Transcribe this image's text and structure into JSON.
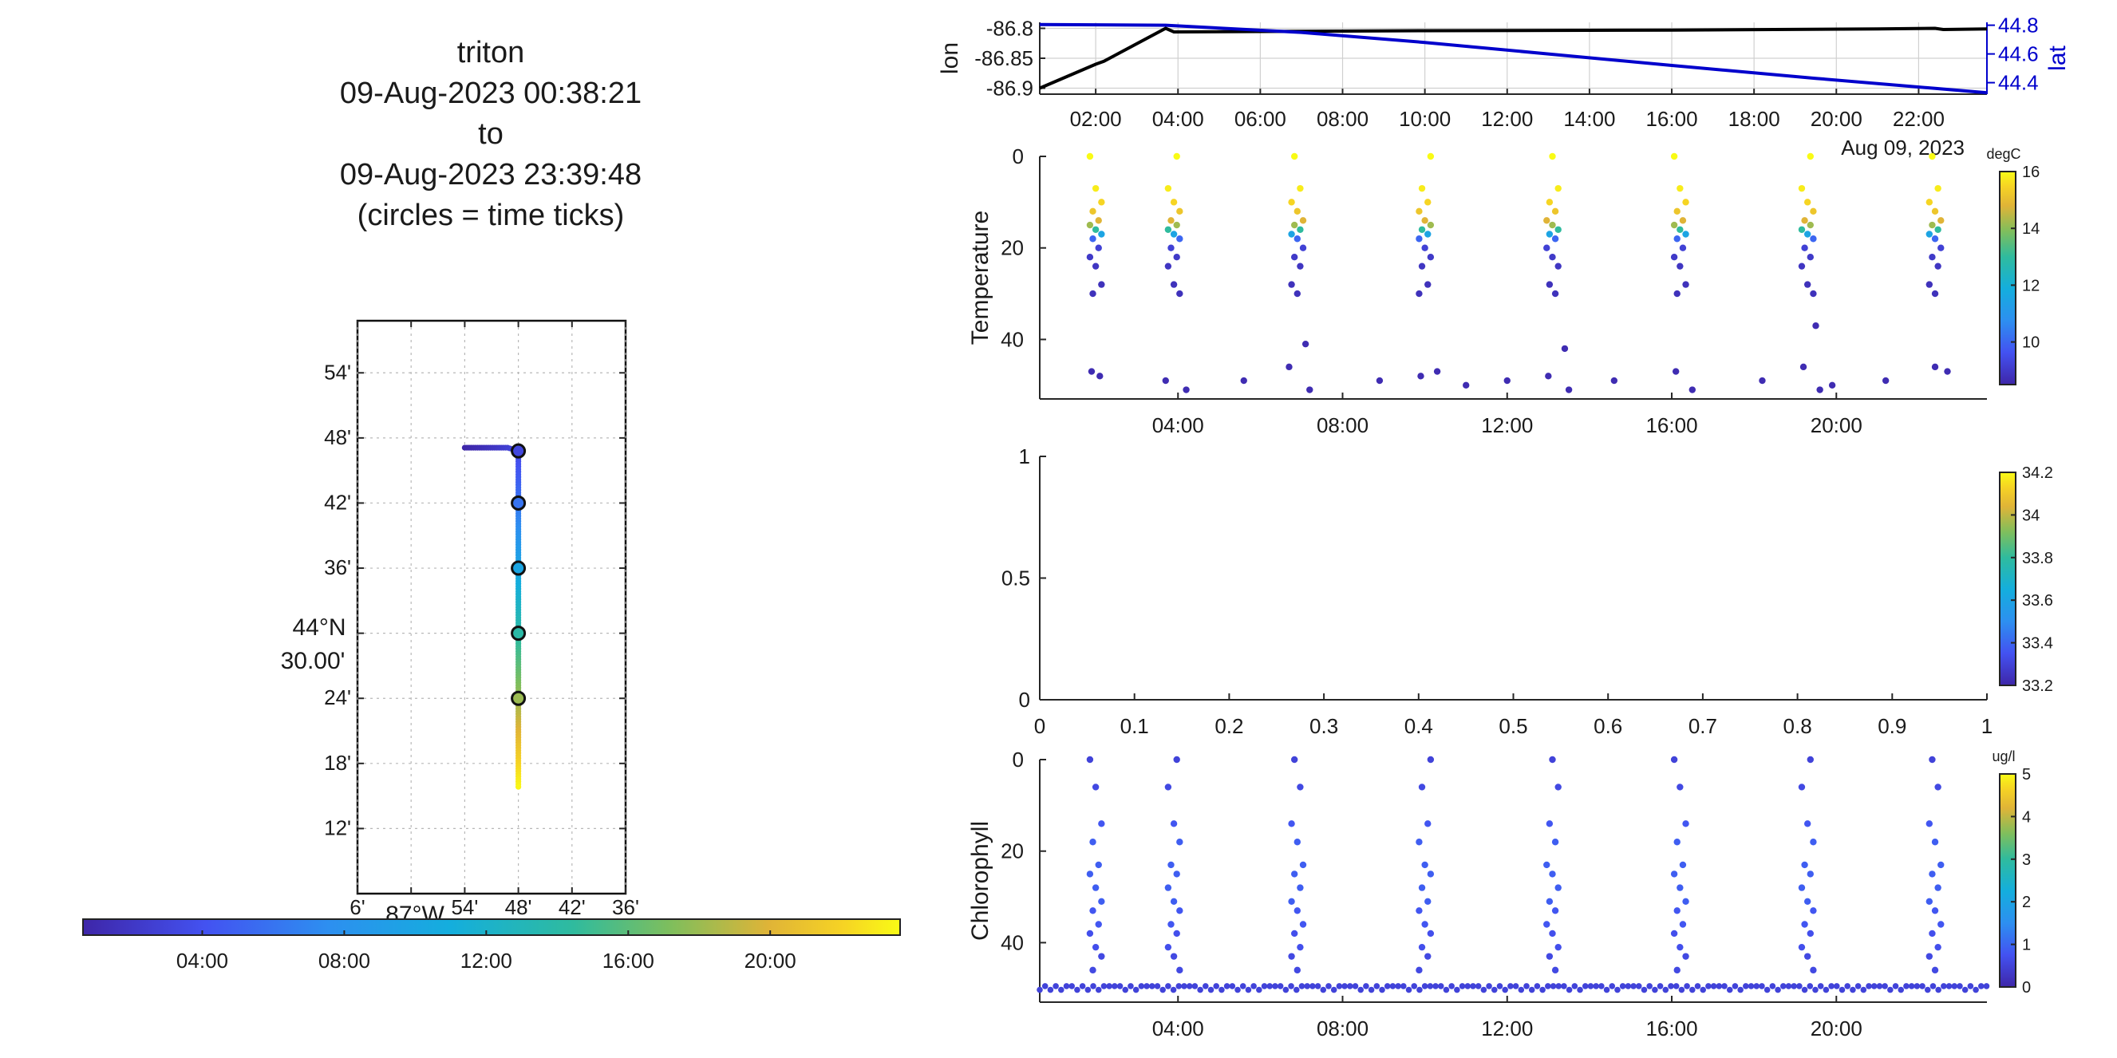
{
  "title": {
    "lines": [
      "triton",
      "09-Aug-2023 00:38:21",
      "to",
      "09-Aug-2023 23:39:48",
      "(circles = time ticks)"
    ]
  },
  "map": {
    "lat_ticks": [
      {
        "v": 44.9,
        "label": "54'"
      },
      {
        "v": 44.8,
        "label": "48'"
      },
      {
        "v": 44.7,
        "label": "42'"
      },
      {
        "v": 44.6,
        "label": "36'"
      },
      {
        "v": 44.4,
        "label": "24'"
      },
      {
        "v": 44.3,
        "label": "18'"
      },
      {
        "v": 44.2,
        "label": "12'"
      }
    ],
    "lat_major": {
      "v": 44.5,
      "line1": "44°N",
      "line2": "30.00'"
    },
    "lon_ticks": [
      {
        "v": -87.1,
        "label": "6'"
      },
      {
        "v": -86.9,
        "label": "54'"
      },
      {
        "v": -86.8,
        "label": "48'"
      },
      {
        "v": -86.7,
        "label": "42'"
      },
      {
        "v": -86.6,
        "label": "36'"
      }
    ],
    "lon_major": {
      "v": -87.0,
      "label": "87°W"
    },
    "xlim": [
      -87.1,
      -86.6
    ],
    "ylim": [
      44.1,
      44.98
    ],
    "track": [
      {
        "lon": -86.9,
        "lat": 44.785,
        "t": 0.64
      },
      {
        "lon": -86.88,
        "lat": 44.785,
        "t": 1.0
      },
      {
        "lon": -86.86,
        "lat": 44.785,
        "t": 1.5
      },
      {
        "lon": -86.84,
        "lat": 44.785,
        "t": 2.0
      },
      {
        "lon": -86.82,
        "lat": 44.785,
        "t": 2.6
      },
      {
        "lon": -86.8,
        "lat": 44.78,
        "t": 3.2
      },
      {
        "lon": -86.8,
        "lat": 44.76,
        "t": 4.0
      },
      {
        "lon": -86.8,
        "lat": 44.74,
        "t": 4.6
      },
      {
        "lon": -86.8,
        "lat": 44.72,
        "t": 5.3
      },
      {
        "lon": -86.8,
        "lat": 44.7,
        "t": 6.0
      },
      {
        "lon": -86.8,
        "lat": 44.68,
        "t": 6.8
      },
      {
        "lon": -86.8,
        "lat": 44.66,
        "t": 7.6
      },
      {
        "lon": -86.8,
        "lat": 44.64,
        "t": 8.4
      },
      {
        "lon": -86.8,
        "lat": 44.62,
        "t": 9.2
      },
      {
        "lon": -86.8,
        "lat": 44.6,
        "t": 10.0
      },
      {
        "lon": -86.8,
        "lat": 44.58,
        "t": 10.8
      },
      {
        "lon": -86.8,
        "lat": 44.56,
        "t": 11.6
      },
      {
        "lon": -86.8,
        "lat": 44.54,
        "t": 12.4
      },
      {
        "lon": -86.8,
        "lat": 44.52,
        "t": 13.2
      },
      {
        "lon": -86.8,
        "lat": 44.5,
        "t": 14.0
      },
      {
        "lon": -86.8,
        "lat": 44.48,
        "t": 14.8
      },
      {
        "lon": -86.8,
        "lat": 44.46,
        "t": 15.6
      },
      {
        "lon": -86.8,
        "lat": 44.44,
        "t": 16.4
      },
      {
        "lon": -86.8,
        "lat": 44.42,
        "t": 17.2
      },
      {
        "lon": -86.8,
        "lat": 44.4,
        "t": 18.0
      },
      {
        "lon": -86.8,
        "lat": 44.38,
        "t": 18.8
      },
      {
        "lon": -86.8,
        "lat": 44.36,
        "t": 19.6
      },
      {
        "lon": -86.8,
        "lat": 44.34,
        "t": 20.4
      },
      {
        "lon": -86.8,
        "lat": 44.32,
        "t": 21.2
      },
      {
        "lon": -86.8,
        "lat": 44.3,
        "t": 22.0
      },
      {
        "lon": -86.8,
        "lat": 44.28,
        "t": 22.8
      },
      {
        "lon": -86.8,
        "lat": 44.26,
        "t": 23.6
      }
    ],
    "time_circles": [
      {
        "lon": -86.8,
        "lat": 44.78
      },
      {
        "lon": -86.8,
        "lat": 44.7
      },
      {
        "lon": -86.8,
        "lat": 44.6
      },
      {
        "lon": -86.8,
        "lat": 44.5
      },
      {
        "lon": -86.8,
        "lat": 44.4
      }
    ]
  },
  "time_colorbar": {
    "ticks": [
      {
        "v": 4,
        "label": "04:00"
      },
      {
        "v": 8,
        "label": "08:00"
      },
      {
        "v": 12,
        "label": "12:00"
      },
      {
        "v": 16,
        "label": "16:00"
      },
      {
        "v": 20,
        "label": "20:00"
      }
    ],
    "range": [
      0.64,
      23.66
    ]
  },
  "chart_data": [
    {
      "type": "line",
      "ylabel": "lon",
      "y2label": "lat",
      "xlim": [
        0.64,
        23.66
      ],
      "ylim": [
        -86.91,
        -86.79
      ],
      "y2lim": [
        44.32,
        44.82
      ],
      "xticks": [
        {
          "v": 2,
          "label": "02:00"
        },
        {
          "v": 4,
          "label": "04:00"
        },
        {
          "v": 6,
          "label": "06:00"
        },
        {
          "v": 8,
          "label": "08:00"
        },
        {
          "v": 10,
          "label": "10:00"
        },
        {
          "v": 12,
          "label": "12:00"
        },
        {
          "v": 14,
          "label": "14:00"
        },
        {
          "v": 16,
          "label": "16:00"
        },
        {
          "v": 18,
          "label": "18:00"
        },
        {
          "v": 20,
          "label": "20:00"
        },
        {
          "v": 22,
          "label": "22:00"
        }
      ],
      "date_label": "Aug 09, 2023",
      "yticks": [
        {
          "v": -86.8,
          "label": "-86.8"
        },
        {
          "v": -86.85,
          "label": "-86.85"
        },
        {
          "v": -86.9,
          "label": "-86.9"
        }
      ],
      "y2ticks": [
        {
          "v": 44.8,
          "label": "44.8"
        },
        {
          "v": 44.6,
          "label": "44.6"
        },
        {
          "v": 44.4,
          "label": "44.4"
        }
      ],
      "grid": true,
      "series": [
        {
          "axis": "left",
          "color": "#000000",
          "x": [
            0.64,
            2.0,
            2.2,
            3.7,
            3.9,
            10.0,
            16.0,
            21.0,
            22.4,
            22.6,
            23.66
          ],
          "y": [
            -86.9,
            -86.86,
            -86.855,
            -86.8,
            -86.806,
            -86.804,
            -86.803,
            -86.801,
            -86.8,
            -86.802,
            -86.801
          ]
        },
        {
          "axis": "right",
          "color": "#0000cc",
          "x": [
            0.64,
            3.7,
            7.0,
            10.0,
            13.0,
            16.0,
            19.5,
            22.4,
            23.66
          ],
          "y": [
            44.805,
            44.8,
            44.75,
            44.68,
            44.6,
            44.52,
            44.43,
            44.36,
            44.33
          ]
        }
      ]
    },
    {
      "type": "scatter",
      "ylabel": "Temperature",
      "xlim": [
        0.64,
        23.66
      ],
      "ylim": [
        53,
        0
      ],
      "xticks": [
        {
          "v": 4,
          "label": "04:00"
        },
        {
          "v": 8,
          "label": "08:00"
        },
        {
          "v": 12,
          "label": "12:00"
        },
        {
          "v": 16,
          "label": "16:00"
        },
        {
          "v": 20,
          "label": "20:00"
        }
      ],
      "yticks": [
        {
          "v": 0,
          "label": "0"
        },
        {
          "v": 20,
          "label": "20"
        },
        {
          "v": 40,
          "label": "40"
        }
      ],
      "colorbar": {
        "unit": "degC",
        "range": [
          8.5,
          16
        ],
        "ticks": [
          {
            "v": 10,
            "label": "10"
          },
          {
            "v": 12,
            "label": "12"
          },
          {
            "v": 14,
            "label": "14"
          },
          {
            "v": 16,
            "label": "16"
          }
        ]
      },
      "profile_times": [
        2.0,
        3.9,
        6.9,
        10.0,
        13.1,
        16.2,
        19.3,
        22.4
      ],
      "profile": {
        "depth": [
          0,
          7,
          10,
          12,
          14,
          15,
          16,
          17,
          18,
          20,
          22,
          24,
          28,
          30
        ],
        "value": [
          16,
          15.8,
          15.5,
          15.2,
          14.8,
          14.2,
          13.0,
          11.5,
          10.0,
          9.2,
          9.0,
          8.9,
          8.8,
          8.8
        ]
      },
      "deep_points": [
        {
          "x": 1.9,
          "y": 47
        },
        {
          "x": 2.1,
          "y": 48
        },
        {
          "x": 3.7,
          "y": 49
        },
        {
          "x": 4.2,
          "y": 51
        },
        {
          "x": 5.6,
          "y": 49
        },
        {
          "x": 6.7,
          "y": 46
        },
        {
          "x": 7.1,
          "y": 41
        },
        {
          "x": 7.2,
          "y": 51
        },
        {
          "x": 8.9,
          "y": 49
        },
        {
          "x": 9.9,
          "y": 48
        },
        {
          "x": 10.3,
          "y": 47
        },
        {
          "x": 11.0,
          "y": 50
        },
        {
          "x": 12.0,
          "y": 49
        },
        {
          "x": 13.0,
          "y": 48
        },
        {
          "x": 13.4,
          "y": 42
        },
        {
          "x": 13.5,
          "y": 51
        },
        {
          "x": 14.6,
          "y": 49
        },
        {
          "x": 16.1,
          "y": 47
        },
        {
          "x": 16.5,
          "y": 51
        },
        {
          "x": 18.2,
          "y": 49
        },
        {
          "x": 19.2,
          "y": 46
        },
        {
          "x": 19.5,
          "y": 37
        },
        {
          "x": 19.6,
          "y": 51
        },
        {
          "x": 19.9,
          "y": 50
        },
        {
          "x": 21.2,
          "y": 49
        },
        {
          "x": 22.4,
          "y": 46
        },
        {
          "x": 22.7,
          "y": 47
        }
      ]
    },
    {
      "type": "scatter",
      "xlim": [
        0,
        1
      ],
      "ylim": [
        0,
        1
      ],
      "xticks": [
        {
          "v": 0,
          "label": "0"
        },
        {
          "v": 0.1,
          "label": "0.1"
        },
        {
          "v": 0.2,
          "label": "0.2"
        },
        {
          "v": 0.3,
          "label": "0.3"
        },
        {
          "v": 0.4,
          "label": "0.4"
        },
        {
          "v": 0.5,
          "label": "0.5"
        },
        {
          "v": 0.6,
          "label": "0.6"
        },
        {
          "v": 0.7,
          "label": "0.7"
        },
        {
          "v": 0.8,
          "label": "0.8"
        },
        {
          "v": 0.9,
          "label": "0.9"
        },
        {
          "v": 1,
          "label": "1"
        }
      ],
      "yticks": [
        {
          "v": 0,
          "label": "0"
        },
        {
          "v": 0.5,
          "label": "0.5"
        },
        {
          "v": 1,
          "label": "1"
        }
      ],
      "colorbar": {
        "range": [
          33.2,
          34.2
        ],
        "ticks": [
          {
            "v": 33.2,
            "label": "33.2"
          },
          {
            "v": 33.4,
            "label": "33.4"
          },
          {
            "v": 33.6,
            "label": "33.6"
          },
          {
            "v": 33.8,
            "label": "33.8"
          },
          {
            "v": 34.0,
            "label": "34"
          },
          {
            "v": 34.2,
            "label": "34.2"
          }
        ]
      }
    },
    {
      "type": "scatter",
      "ylabel": "Chlorophyll",
      "xlim": [
        0.64,
        23.66
      ],
      "ylim": [
        53,
        0
      ],
      "xticks": [
        {
          "v": 4,
          "label": "04:00"
        },
        {
          "v": 8,
          "label": "08:00"
        },
        {
          "v": 12,
          "label": "12:00"
        },
        {
          "v": 16,
          "label": "16:00"
        },
        {
          "v": 20,
          "label": "20:00"
        }
      ],
      "yticks": [
        {
          "v": 0,
          "label": "0"
        },
        {
          "v": 20,
          "label": "20"
        },
        {
          "v": 40,
          "label": "40"
        }
      ],
      "colorbar": {
        "unit": "ug/l",
        "range": [
          0,
          5
        ],
        "ticks": [
          {
            "v": 0,
            "label": "0"
          },
          {
            "v": 1,
            "label": "1"
          },
          {
            "v": 2,
            "label": "2"
          },
          {
            "v": 3,
            "label": "3"
          },
          {
            "v": 4,
            "label": "4"
          },
          {
            "v": 5,
            "label": "5"
          }
        ]
      },
      "profile_times": [
        2.0,
        3.9,
        6.9,
        10.0,
        13.1,
        16.2,
        19.3,
        22.4
      ],
      "profile": {
        "depth": [
          0,
          6,
          14,
          18,
          23,
          25,
          28,
          31,
          33,
          36,
          38,
          41,
          43,
          46
        ],
        "value": [
          0.5,
          0.6,
          0.8,
          0.9,
          0.9,
          0.9,
          0.9,
          0.9,
          0.8,
          0.8,
          0.7,
          0.7,
          0.6,
          0.6
        ]
      },
      "surface_y": 49.5
    }
  ]
}
